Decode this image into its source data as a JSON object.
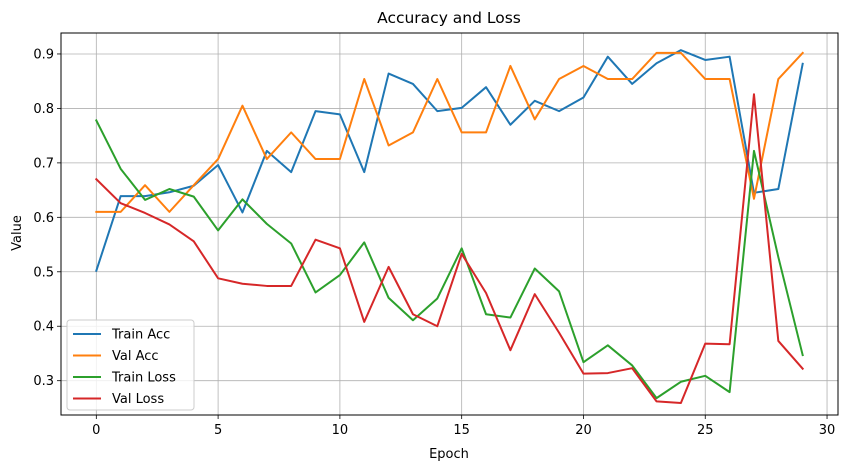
{
  "chart_data": {
    "type": "line",
    "title": "Accuracy and Loss",
    "xlabel": "Epoch",
    "ylabel": "Value",
    "xlim": [
      -1.45,
      30.45
    ],
    "ylim": [
      0.237,
      0.9385
    ],
    "x_ticks": [
      0,
      5,
      10,
      15,
      20,
      25,
      30
    ],
    "y_ticks": [
      0.3,
      0.4,
      0.5,
      0.6,
      0.7,
      0.8,
      0.9
    ],
    "x_tick_labels": [
      "0",
      "5",
      "10",
      "15",
      "20",
      "25",
      "30"
    ],
    "y_tick_labels": [
      "0.3",
      "0.4",
      "0.5",
      "0.6",
      "0.7",
      "0.8",
      "0.9"
    ],
    "grid": true,
    "legend_position": "lower-left",
    "x": [
      0,
      1,
      2,
      3,
      4,
      5,
      6,
      7,
      8,
      9,
      10,
      11,
      12,
      13,
      14,
      15,
      16,
      17,
      18,
      19,
      20,
      21,
      22,
      23,
      24,
      25,
      26,
      27,
      28,
      29
    ],
    "series": [
      {
        "name": "Train Acc",
        "color": "#1f77b4",
        "values": [
          0.502,
          0.639,
          0.639,
          0.646,
          0.658,
          0.696,
          0.609,
          0.722,
          0.683,
          0.795,
          0.789,
          0.683,
          0.864,
          0.845,
          0.795,
          0.801,
          0.839,
          0.77,
          0.814,
          0.795,
          0.82,
          0.895,
          0.845,
          0.883,
          0.907,
          0.889,
          0.895,
          0.645,
          0.652,
          0.882
        ]
      },
      {
        "name": "Val Acc",
        "color": "#ff7f0e",
        "values": [
          0.61,
          0.61,
          0.659,
          0.61,
          0.659,
          0.707,
          0.805,
          0.707,
          0.756,
          0.707,
          0.707,
          0.854,
          0.732,
          0.756,
          0.854,
          0.756,
          0.756,
          0.878,
          0.78,
          0.854,
          0.878,
          0.854,
          0.854,
          0.902,
          0.902,
          0.854,
          0.854,
          0.634,
          0.854,
          0.902
        ]
      },
      {
        "name": "Train Loss",
        "color": "#2ca02c",
        "values": [
          0.778,
          0.689,
          0.632,
          0.652,
          0.638,
          0.576,
          0.633,
          0.588,
          0.552,
          0.462,
          0.494,
          0.554,
          0.452,
          0.411,
          0.451,
          0.543,
          0.422,
          0.416,
          0.506,
          0.464,
          0.334,
          0.365,
          0.328,
          0.268,
          0.298,
          0.309,
          0.279,
          0.722,
          0.527,
          0.347
        ]
      },
      {
        "name": "Val Loss",
        "color": "#d62728",
        "values": [
          0.67,
          0.626,
          0.608,
          0.587,
          0.556,
          0.488,
          0.478,
          0.474,
          0.474,
          0.559,
          0.543,
          0.408,
          0.509,
          0.422,
          0.4,
          0.533,
          0.461,
          0.356,
          0.459,
          0.388,
          0.313,
          0.314,
          0.323,
          0.262,
          0.259,
          0.368,
          0.367,
          0.826,
          0.373,
          0.322
        ]
      }
    ]
  }
}
